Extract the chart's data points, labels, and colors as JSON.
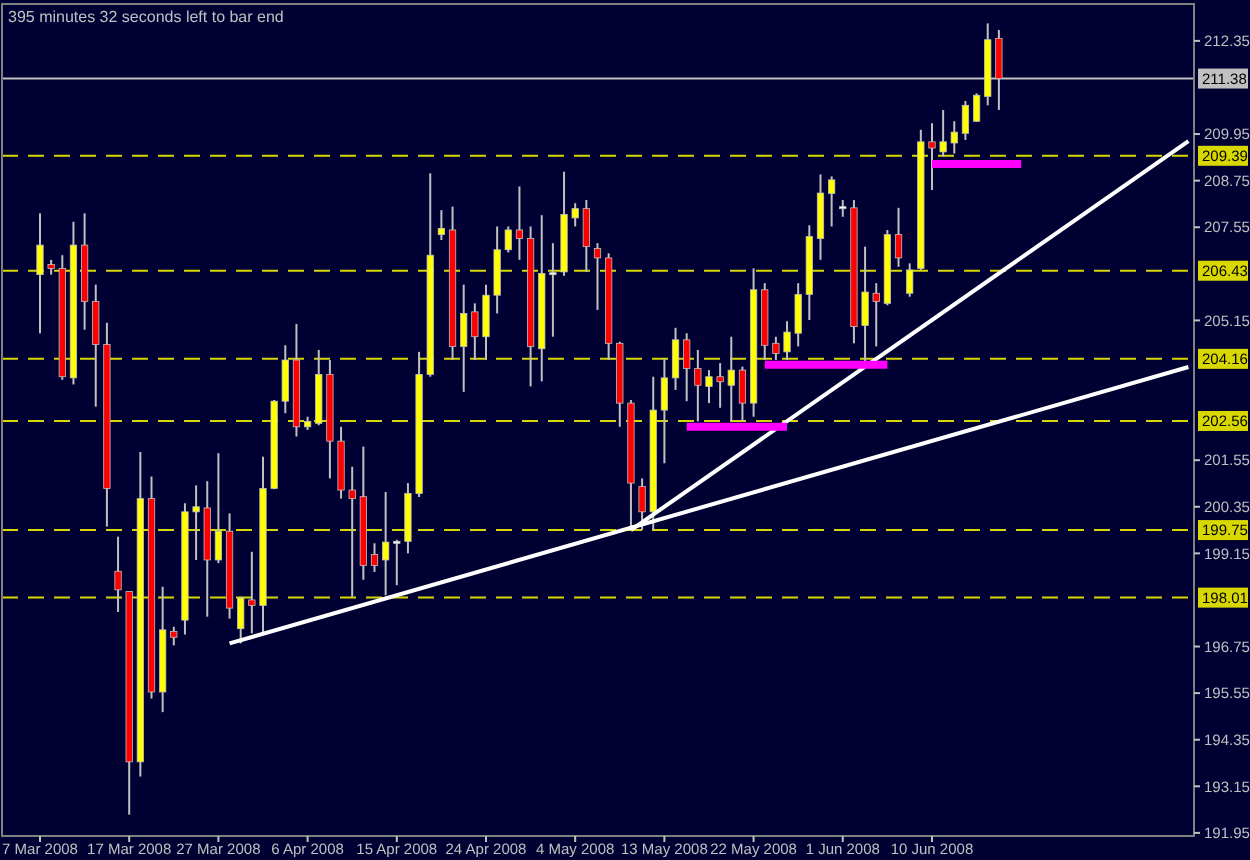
{
  "chart_data": {
    "type": "candlestick",
    "annotations": [
      "395 minutes 32 seconds left to bar end"
    ],
    "categories": [
      "7 Mar 2008",
      null,
      null,
      null,
      null,
      null,
      null,
      null,
      "17 Mar 2008",
      null,
      null,
      null,
      null,
      null,
      null,
      null,
      "27 Mar 2008",
      null,
      null,
      null,
      null,
      null,
      null,
      null,
      "6 Apr 2008",
      null,
      null,
      null,
      null,
      null,
      null,
      null,
      "15 Apr 2008",
      null,
      null,
      null,
      null,
      null,
      null,
      null,
      "24 Apr 2008",
      null,
      null,
      null,
      null,
      null,
      null,
      null,
      "4 May 2008",
      null,
      null,
      null,
      null,
      null,
      null,
      null,
      "13 May 2008",
      null,
      null,
      null,
      null,
      null,
      null,
      null,
      "22 May 2008",
      null,
      null,
      null,
      null,
      null,
      null,
      null,
      "1 Jun 2008",
      null,
      null,
      null,
      null,
      null,
      null,
      null,
      "10 Jun 2008",
      null,
      null,
      null,
      null,
      null,
      null,
      null,
      null,
      null,
      null,
      null,
      null,
      null,
      null,
      null,
      null,
      null,
      null,
      null,
      null,
      null,
      null,
      null
    ],
    "ylim": [
      191.87,
      213.3
    ],
    "yticks": [
      212.35,
      209.95,
      208.75,
      207.55,
      205.15,
      201.55,
      200.35,
      199.15,
      196.75,
      195.55,
      194.35,
      193.15,
      191.95
    ],
    "grid": false,
    "series": [
      {
        "ohlc": [
          [
            206.33,
            207.91,
            204.82,
            207.09
          ],
          [
            206.59,
            206.71,
            206.33,
            206.49
          ],
          [
            206.49,
            206.83,
            203.62,
            203.7
          ],
          [
            203.67,
            207.69,
            203.5,
            207.09
          ],
          [
            207.09,
            207.91,
            204.91,
            205.64
          ],
          [
            205.64,
            206.07,
            202.93,
            204.53
          ],
          [
            204.53,
            205.09,
            199.84,
            200.82
          ],
          [
            198.69,
            199.58,
            197.64,
            198.21
          ],
          [
            198.17,
            198.17,
            192.42,
            193.78
          ],
          [
            193.78,
            201.76,
            193.4,
            200.56
          ],
          [
            200.56,
            201.13,
            195.41,
            195.58
          ],
          [
            195.58,
            198.29,
            195.06,
            197.18
          ],
          [
            197.14,
            197.26,
            196.78,
            196.99
          ],
          [
            197.43,
            200.44,
            197.06,
            200.22
          ],
          [
            200.22,
            200.9,
            198.98,
            200.35
          ],
          [
            200.32,
            201.01,
            197.52,
            198.98
          ],
          [
            198.98,
            201.73,
            198.9,
            199.72
          ],
          [
            199.72,
            200.18,
            197.47,
            197.74
          ],
          [
            197.21,
            198.03,
            196.83,
            198
          ],
          [
            197.95,
            199.19,
            197.09,
            197.81
          ],
          [
            197.81,
            201.64,
            197.09,
            200.82
          ],
          [
            200.82,
            203.1,
            200.8,
            203.07
          ],
          [
            203.07,
            204.51,
            202.76,
            204.13
          ],
          [
            204.13,
            205.06,
            202.16,
            202.41
          ],
          [
            202.41,
            202.67,
            202.33,
            202.55
          ],
          [
            202.5,
            204.39,
            202.45,
            203.76
          ],
          [
            203.76,
            204.13,
            201.08,
            202.04
          ],
          [
            202.04,
            202.41,
            200.56,
            200.78
          ],
          [
            200.78,
            201.38,
            198.03,
            200.56
          ],
          [
            200.61,
            201.9,
            198.47,
            198.84
          ],
          [
            199.12,
            199.41,
            198.67,
            198.84
          ],
          [
            198.98,
            200.73,
            198.07,
            199.44
          ],
          [
            199.46,
            199.5,
            198.33,
            199.46
          ],
          [
            199.46,
            200.96,
            199.15,
            200.69
          ],
          [
            200.69,
            204.34,
            200.6,
            203.76
          ],
          [
            203.76,
            208.94,
            203.7,
            206.83
          ],
          [
            207.36,
            207.99,
            207.22,
            207.52
          ],
          [
            207.48,
            208.08,
            204.13,
            204.48
          ],
          [
            204.48,
            206.07,
            203.31,
            205.33
          ],
          [
            205.37,
            205.59,
            204.13,
            204.73
          ],
          [
            204.73,
            206.07,
            204.13,
            205.8
          ],
          [
            205.8,
            207.57,
            205.33,
            206.97
          ],
          [
            206.97,
            207.57,
            206.9,
            207.48
          ],
          [
            207.48,
            208.6,
            206.71,
            207.26
          ],
          [
            207.26,
            207.57,
            203.45,
            204.48
          ],
          [
            204.42,
            207.86,
            203.58,
            206.36
          ],
          [
            206.38,
            207.14,
            204.73,
            206.38
          ],
          [
            206.4,
            208.98,
            206.3,
            207.88
          ],
          [
            207.79,
            208.17,
            207.57,
            208.03
          ],
          [
            208.03,
            208.25,
            206.4,
            207.05
          ],
          [
            207,
            207.14,
            205.42,
            206.76
          ],
          [
            206.76,
            206.88,
            204.13,
            204.56
          ],
          [
            204.56,
            204.6,
            202.41,
            203.02
          ],
          [
            203.02,
            203.1,
            199.75,
            200.96
          ],
          [
            200.87,
            201.08,
            199.75,
            200.22
          ],
          [
            200.22,
            203.7,
            199.75,
            202.84
          ],
          [
            202.84,
            204.17,
            201.47,
            203.67
          ],
          [
            203.67,
            204.96,
            203.36,
            204.65
          ],
          [
            204.65,
            204.82,
            203.07,
            203.91
          ],
          [
            203.91,
            204.39,
            202.55,
            203.48
          ],
          [
            203.45,
            203.87,
            203.02,
            203.7
          ],
          [
            203.7,
            204.05,
            202.9,
            203.57
          ],
          [
            203.48,
            204.73,
            202.55,
            203.87
          ],
          [
            203.87,
            203.96,
            202.55,
            203.02
          ],
          [
            203.02,
            206.49,
            202.67,
            205.94
          ],
          [
            205.94,
            206.11,
            204.13,
            204.51
          ],
          [
            204.56,
            204.73,
            204.13,
            204.3
          ],
          [
            204.34,
            205.13,
            204.13,
            204.85
          ],
          [
            204.82,
            206.11,
            204.48,
            205.82
          ],
          [
            205.82,
            207.6,
            205.16,
            207.31
          ],
          [
            207.26,
            208.91,
            206.71,
            208.43
          ],
          [
            208.42,
            208.86,
            207.57,
            208.77
          ],
          [
            208.08,
            208.25,
            207.82,
            208.08
          ],
          [
            208.05,
            208.25,
            204.56,
            204.99
          ],
          [
            205.02,
            207.05,
            204.05,
            205.88
          ],
          [
            205.85,
            206.11,
            204.48,
            205.64
          ],
          [
            205.59,
            207.48,
            205.54,
            207.36
          ],
          [
            207.36,
            208.05,
            206.53,
            206.76
          ],
          [
            205.85,
            206.62,
            205.76,
            206.45
          ],
          [
            206.49,
            210.06,
            206.45,
            209.75
          ],
          [
            209.75,
            210.23,
            208.51,
            209.59
          ],
          [
            209.49,
            210.57,
            209.37,
            209.75
          ],
          [
            209.72,
            210.28,
            209.45,
            210
          ],
          [
            209.97,
            210.8,
            209.8,
            210.69
          ],
          [
            210.28,
            211,
            210.26,
            210.95
          ],
          [
            210.92,
            212.8,
            210.69,
            212.38
          ],
          [
            212.41,
            212.63,
            210.57,
            211.38
          ],
          null,
          null,
          null,
          null,
          null,
          null,
          null,
          null,
          null,
          null,
          null,
          null,
          null,
          null,
          null,
          null,
          null
        ],
        "colors": [
          "#ffff00",
          "#ff0000",
          "#ff0000",
          "#ffff00",
          "#ff0000",
          "#ff0000",
          "#ff0000",
          "#ff0000",
          "#ff0000",
          "#ffff00",
          "#ff0000",
          "#ffff00",
          "#ff0000",
          "#ffff00",
          "#ffff00",
          "#ff0000",
          "#ffff00",
          "#ff0000",
          "#ffff00",
          "#ff0000",
          "#ffff00",
          "#ffff00",
          "#ffff00",
          "#ff0000",
          "#ffff00",
          "#ffff00",
          "#ff0000",
          "#ff0000",
          "#ff0000",
          "#ff0000",
          "#ff0000",
          "#ffff00",
          "#ffffff",
          "#ffff00",
          "#ffff00",
          "#ffff00",
          "#ffff00",
          "#ff0000",
          "#ffff00",
          "#ff0000",
          "#ffff00",
          "#ffff00",
          "#ffff00",
          "#ff0000",
          "#ff0000",
          "#ffff00",
          "#ffffff",
          "#ffff00",
          "#ffff00",
          "#ff0000",
          "#ff0000",
          "#ff0000",
          "#ff0000",
          "#ff0000",
          "#ff0000",
          "#ffff00",
          "#ffff00",
          "#ffff00",
          "#ff0000",
          "#ff0000",
          "#ffff00",
          "#ff0000",
          "#ffff00",
          "#ff0000",
          "#ffff00",
          "#ff0000",
          "#ff0000",
          "#ffff00",
          "#ffff00",
          "#ffff00",
          "#ffff00",
          "#ffff00",
          "#ffffff",
          "#ff0000",
          "#ffff00",
          "#ff0000",
          "#ffff00",
          "#ff0000",
          "#ffff00",
          "#ffff00",
          "#ff0000",
          "#ffff00",
          "#ffff00",
          "#ffff00",
          "#ffff00",
          "#ffff00",
          "#ff0000",
          null,
          null,
          null,
          null,
          null,
          null,
          null,
          null,
          null,
          null,
          null,
          null,
          null,
          null,
          null,
          null,
          null
        ]
      },
      {
        "type": "line",
        "values": [
          null,
          null,
          null,
          null,
          null,
          null,
          null,
          null,
          null,
          null,
          null,
          null,
          null,
          null,
          null,
          null,
          null,
          196.83,
          null,
          null,
          null,
          null,
          null,
          null,
          null,
          null,
          null,
          null,
          null,
          null,
          null,
          null,
          null,
          null,
          null,
          null,
          null,
          null,
          null,
          null,
          null,
          null,
          null,
          null,
          null,
          null,
          null,
          null,
          null,
          null,
          null,
          null,
          null,
          null,
          null,
          null,
          null,
          null,
          null,
          null,
          null,
          null,
          null,
          null,
          null,
          null,
          null,
          null,
          null,
          null,
          null,
          null,
          null,
          null,
          null,
          null,
          null,
          null,
          null,
          null,
          null,
          null,
          null,
          null,
          null,
          null,
          null,
          null,
          null,
          null,
          null,
          null,
          null,
          null,
          null,
          null,
          null,
          null,
          null,
          null,
          null,
          null,
          null,
          203.95
        ],
        "color": "#ffffff"
      },
      {
        "type": "line",
        "values": [
          null,
          null,
          null,
          null,
          null,
          null,
          null,
          null,
          null,
          null,
          null,
          null,
          null,
          null,
          null,
          null,
          null,
          null,
          null,
          null,
          null,
          null,
          null,
          null,
          null,
          null,
          null,
          null,
          null,
          null,
          null,
          null,
          null,
          null,
          null,
          null,
          null,
          null,
          null,
          null,
          null,
          null,
          null,
          null,
          null,
          null,
          null,
          null,
          null,
          null,
          null,
          null,
          null,
          199.75,
          null,
          null,
          null,
          null,
          null,
          null,
          null,
          null,
          null,
          null,
          null,
          null,
          null,
          null,
          null,
          null,
          null,
          null,
          null,
          null,
          null,
          null,
          null,
          null,
          null,
          null,
          null,
          null,
          null,
          null,
          null,
          null,
          null,
          null,
          null,
          null,
          null,
          null,
          null,
          null,
          null,
          null,
          null,
          null,
          null,
          null,
          null,
          null,
          null,
          209.77
        ],
        "color": "#ffffff"
      },
      {
        "type": "line",
        "values": [
          null,
          null,
          null,
          null,
          null,
          null,
          null,
          null,
          null,
          null,
          null,
          null,
          null,
          null,
          null,
          null,
          null,
          null,
          null,
          null,
          null,
          null,
          null,
          null,
          null,
          null,
          null,
          null,
          null,
          null,
          null,
          null,
          null,
          null,
          null,
          null,
          null,
          null,
          null,
          null,
          null,
          null,
          null,
          null,
          null,
          null,
          null,
          null,
          null,
          null,
          null,
          null,
          null,
          null,
          null,
          null,
          null,
          null,
          202.41,
          null,
          null,
          null,
          null,
          null,
          null,
          null,
          null,
          202.41,
          null,
          null,
          null,
          null,
          null,
          null,
          null,
          null,
          null,
          null,
          null,
          null,
          null,
          null,
          null,
          null,
          null,
          null,
          null,
          null,
          null,
          null,
          null,
          null,
          null,
          null,
          null,
          null,
          null,
          null,
          null,
          null,
          null,
          null,
          null,
          null
        ],
        "color": "#ff00ff"
      },
      {
        "type": "line",
        "values": [
          null,
          null,
          null,
          null,
          null,
          null,
          null,
          null,
          null,
          null,
          null,
          null,
          null,
          null,
          null,
          null,
          null,
          null,
          null,
          null,
          null,
          null,
          null,
          null,
          null,
          null,
          null,
          null,
          null,
          null,
          null,
          null,
          null,
          null,
          null,
          null,
          null,
          null,
          null,
          null,
          null,
          null,
          null,
          null,
          null,
          null,
          null,
          null,
          null,
          null,
          null,
          null,
          null,
          null,
          null,
          null,
          null,
          null,
          null,
          null,
          null,
          null,
          null,
          null,
          null,
          204.01,
          null,
          null,
          null,
          null,
          null,
          null,
          null,
          null,
          null,
          null,
          204.01,
          null,
          null,
          null,
          null,
          null,
          null,
          null,
          null,
          null,
          null,
          null,
          null,
          null,
          null,
          null,
          null,
          null,
          null,
          null,
          null,
          null,
          null,
          null,
          null,
          null,
          null,
          null
        ],
        "color": "#ff00ff"
      },
      {
        "type": "line",
        "values": [
          null,
          null,
          null,
          null,
          null,
          null,
          null,
          null,
          null,
          null,
          null,
          null,
          null,
          null,
          null,
          null,
          null,
          null,
          null,
          null,
          null,
          null,
          null,
          null,
          null,
          null,
          null,
          null,
          null,
          null,
          null,
          null,
          null,
          null,
          null,
          null,
          null,
          null,
          null,
          null,
          null,
          null,
          null,
          null,
          null,
          null,
          null,
          null,
          null,
          null,
          null,
          null,
          null,
          null,
          null,
          null,
          null,
          null,
          null,
          null,
          null,
          null,
          null,
          null,
          null,
          null,
          null,
          null,
          null,
          null,
          null,
          null,
          null,
          null,
          null,
          null,
          null,
          null,
          null,
          null,
          209.18,
          null,
          null,
          null,
          null,
          null,
          null,
          null,
          209.18,
          null,
          null,
          null,
          null,
          null,
          null,
          null,
          null,
          null,
          null,
          null,
          null,
          null,
          null,
          null
        ],
        "color": "#ff00ff"
      }
    ],
    "ref_lines": [
      {
        "axis": "y",
        "value": 211.38,
        "label": "211.38",
        "color": "#c0c0c0",
        "line_style": "solid"
      },
      {
        "axis": "y",
        "value": 209.39,
        "label": "209.39",
        "color": "#d8d800",
        "line_style": "dashed"
      },
      {
        "axis": "y",
        "value": 206.43,
        "label": "206.43",
        "color": "#d8d800",
        "line_style": "dashed"
      },
      {
        "axis": "y",
        "value": 204.16,
        "label": "204.16",
        "color": "#d8d800",
        "line_style": "dashed"
      },
      {
        "axis": "y",
        "value": 202.56,
        "label": "202.56",
        "color": "#d8d800",
        "line_style": "dashed"
      },
      {
        "axis": "y",
        "value": 199.75,
        "label": "199.75",
        "color": "#d8d800",
        "line_style": "dashed"
      },
      {
        "axis": "y",
        "value": 198.01,
        "label": "198.01",
        "color": "#d8d800",
        "line_style": "dashed"
      }
    ]
  }
}
